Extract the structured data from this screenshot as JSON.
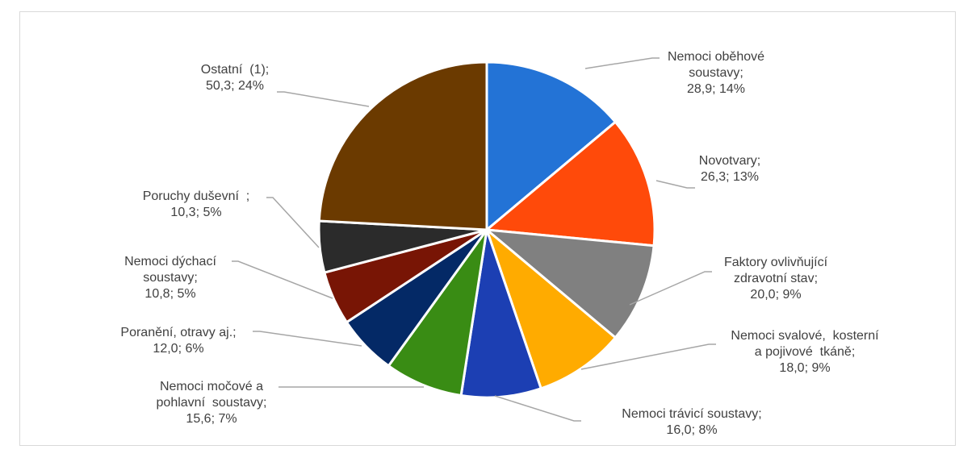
{
  "chart_data": {
    "type": "pie",
    "title": "",
    "slices": [
      {
        "label_lines": [
          "Nemoci oběhové",
          "soustavy;",
          "28,9; 14%"
        ],
        "name": "Nemoci oběhové soustavy",
        "value": 28.9,
        "percent": "14%",
        "color": "#2373d6"
      },
      {
        "label_lines": [
          "Novotvary;",
          "26,3; 13%"
        ],
        "name": "Novotvary",
        "value": 26.3,
        "percent": "13%",
        "color": "#ff4a0a"
      },
      {
        "label_lines": [
          "Faktory ovlivňující",
          "zdravotní stav;",
          "20,0; 9%"
        ],
        "name": "Faktory ovlivňující zdravotní stav",
        "value": 20.0,
        "percent": "9%",
        "color": "#808080"
      },
      {
        "label_lines": [
          "Nemoci svalové,  kosterní",
          "a pojivové  tkáně;",
          "18,0; 9%"
        ],
        "name": "Nemoci svalové, kosterní a pojivové tkáně",
        "value": 18.0,
        "percent": "9%",
        "color": "#ffab00"
      },
      {
        "label_lines": [
          "Nemoci trávicí soustavy;",
          "16,0; 8%"
        ],
        "name": "Nemoci trávicí soustavy",
        "value": 16.0,
        "percent": "8%",
        "color": "#1c3fb3"
      },
      {
        "label_lines": [
          "Nemoci močové a",
          "pohlavní  soustavy;",
          "15,6; 7%"
        ],
        "name": "Nemoci močové a pohlavní soustavy",
        "value": 15.6,
        "percent": "7%",
        "color": "#398c14"
      },
      {
        "label_lines": [
          "Poranění, otravy aj.;",
          "12,0; 6%"
        ],
        "name": "Poranění, otravy aj.",
        "value": 12.0,
        "percent": "6%",
        "color": "#042966"
      },
      {
        "label_lines": [
          "Nemoci dýchací",
          "soustavy;",
          "10,8; 5%"
        ],
        "name": "Nemoci dýchací soustavy",
        "value": 10.8,
        "percent": "5%",
        "color": "#781505"
      },
      {
        "label_lines": [
          "Poruchy duševní  ;",
          "10,3; 5%"
        ],
        "name": "Poruchy duševní",
        "value": 10.3,
        "percent": "5%",
        "color": "#2b2b2b"
      },
      {
        "label_lines": [
          "Ostatní  (1);",
          "50,3; 24%"
        ],
        "name": "Ostatní (1)",
        "value": 50.3,
        "percent": "24%",
        "color": "#6b3a00"
      }
    ]
  }
}
